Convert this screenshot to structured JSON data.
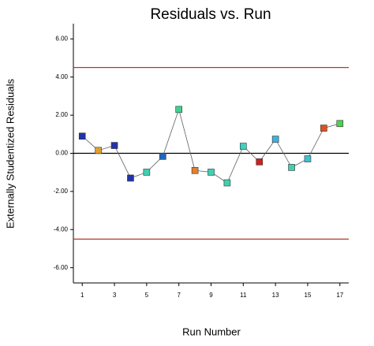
{
  "chart_data": {
    "type": "line",
    "title": "Residuals vs. Run",
    "x_label": "Run Number",
    "y_label": "Externally Studentized Residuals",
    "x": [
      1,
      2,
      3,
      4,
      5,
      6,
      7,
      8,
      9,
      10,
      11,
      12,
      13,
      14,
      15,
      16,
      17
    ],
    "series": [
      {
        "name": "Residuals",
        "color": "#606060",
        "point_colors": [
          "#2233aa",
          "#e0a030",
          "#2233aa",
          "#2233aa",
          "#40d0b0",
          "#2266bb",
          "#40d090",
          "#e08030",
          "#40d0b0",
          "#40d0b0",
          "#40d0c0",
          "#cc2222",
          "#40b0e0",
          "#40d0b0",
          "#40c0d0",
          "#e05020",
          "#50d050"
        ],
        "values": [
          0.9,
          0.15,
          0.41,
          -1.3,
          -0.99,
          -0.16,
          2.3,
          -0.9,
          -0.99,
          -1.55,
          0.37,
          -0.45,
          0.74,
          -0.74,
          -0.29,
          1.32,
          1.56
        ]
      }
    ],
    "reference_lines": [
      {
        "value": 4.5,
        "color": "#b03a2e"
      },
      {
        "value": -4.5,
        "color": "#b03a2e"
      },
      {
        "value": 0,
        "color": "#000000"
      }
    ],
    "xlim": [
      0.45,
      17.55
    ],
    "xticks": [
      1,
      3,
      5,
      7,
      9,
      11,
      13,
      15,
      17
    ],
    "ylim": [
      -6.8,
      6.8
    ],
    "yticks": [
      {
        "value": -6,
        "label": "-6.00"
      },
      {
        "value": -4,
        "label": "-4.00"
      },
      {
        "value": -2,
        "label": "-2.00"
      },
      {
        "value": 0,
        "label": "0.00"
      },
      {
        "value": 2,
        "label": "2.00"
      },
      {
        "value": 4,
        "label": "4.00"
      },
      {
        "value": 6,
        "label": "6.00"
      }
    ]
  }
}
